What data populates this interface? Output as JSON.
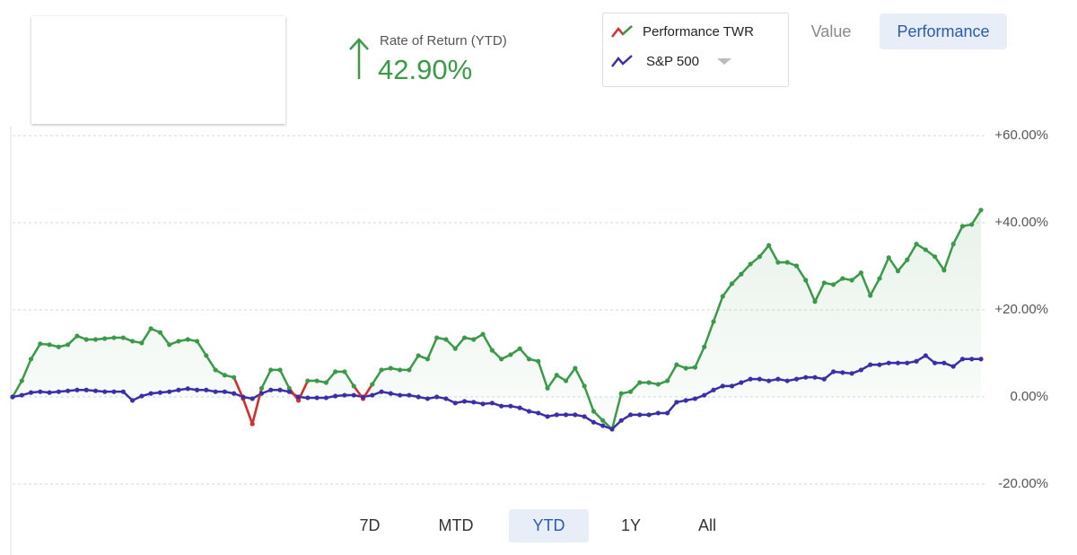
{
  "header": {
    "return_label": "Rate of Return (YTD)",
    "return_value": "42.90%"
  },
  "view_toggle": [
    "Value",
    "Performance"
  ],
  "chart_data": {
    "type": "line",
    "series": [
      {
        "name": "Performance TWR",
        "color": "#3a9a48",
        "below_color": "#d32f2f",
        "values": [
          0,
          3.7,
          8.7,
          12.2,
          12,
          11.5,
          12,
          14,
          13.2,
          13.2,
          13.4,
          13.6,
          13.6,
          12.8,
          12.4,
          15.7,
          14.8,
          12,
          12.8,
          13.2,
          12.8,
          9.5,
          6.2,
          5,
          4.5,
          -0.4,
          -6.2,
          2,
          6.2,
          6.2,
          2,
          -0.8,
          3.7,
          3.7,
          3.3,
          5.8,
          5.8,
          2.5,
          -0.4,
          2.9,
          6.2,
          6.6,
          6.2,
          6.2,
          9.5,
          8.7,
          13.6,
          13.2,
          11.1,
          13.6,
          13.2,
          14.4,
          10.7,
          8.7,
          9.7,
          11.1,
          8.7,
          8.2,
          2,
          5,
          3.7,
          6.6,
          2.5,
          -3.3,
          -5.4,
          -7.4,
          0.8,
          1.2,
          3.3,
          3.3,
          2.9,
          3.7,
          7.4,
          6.6,
          6.8,
          11.5,
          17.3,
          23.1,
          26,
          28.2,
          30.5,
          32.2,
          34.8,
          30.9,
          30.9,
          30.1,
          26.8,
          21.9,
          26.2,
          25.8,
          27.2,
          26.8,
          28.5,
          23.3,
          27.2,
          32,
          28.9,
          31.5,
          35.1,
          33.8,
          32.2,
          29.1,
          35.1,
          39.2,
          39.6,
          42.9
        ]
      },
      {
        "name": "S&P 500",
        "color": "#3b2fa8",
        "values": [
          0,
          0.4,
          1,
          1.2,
          1,
          1.2,
          1.4,
          1.6,
          1.6,
          1.4,
          1.2,
          1.2,
          1.2,
          -0.8,
          0.2,
          0.8,
          1,
          1.2,
          1.6,
          1.9,
          1.6,
          1.6,
          1.2,
          1.2,
          0.8,
          0,
          -0.4,
          0.8,
          1.6,
          1.6,
          1.2,
          0,
          -0.2,
          -0.2,
          -0.2,
          0.2,
          0.4,
          0.4,
          0,
          0.4,
          1.2,
          0.8,
          0.4,
          0.4,
          0,
          -0.4,
          0,
          -0.4,
          -1.4,
          -1,
          -1.2,
          -1.6,
          -1.4,
          -2.1,
          -2.1,
          -2.5,
          -3.3,
          -3.7,
          -4.5,
          -4.1,
          -4.1,
          -4.1,
          -4.5,
          -5.8,
          -6.6,
          -7.4,
          -5.4,
          -4.1,
          -4.1,
          -4.1,
          -3.7,
          -3.7,
          -1.2,
          -0.8,
          -0.4,
          0.4,
          1.6,
          2.5,
          2.5,
          3.3,
          4.1,
          4.1,
          3.7,
          4.1,
          3.7,
          4.1,
          4.5,
          4.5,
          4.1,
          5.8,
          5.6,
          5.4,
          6.2,
          7.4,
          7.4,
          7.8,
          7.8,
          7.8,
          8.2,
          9.5,
          7.8,
          7.8,
          7,
          8.7,
          8.7,
          8.7
        ]
      }
    ],
    "ylim": [
      -24,
      62
    ],
    "yticks": [
      {
        "value": 60,
        "label": "+60.00%"
      },
      {
        "value": 40,
        "label": "+40.00%"
      },
      {
        "value": 20,
        "label": "+20.00%"
      },
      {
        "value": 0,
        "label": "0.00%"
      },
      {
        "value": -20,
        "label": "-20.00%"
      }
    ],
    "grid": true
  },
  "range_buttons": [
    "7D",
    "MTD",
    "YTD",
    "1Y",
    "All"
  ]
}
